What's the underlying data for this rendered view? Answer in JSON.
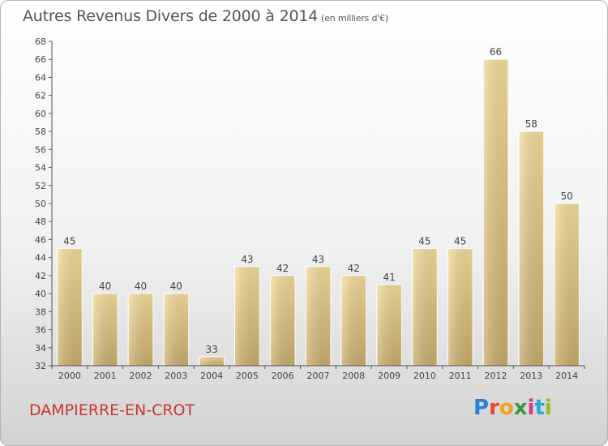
{
  "title": "Autres Revenus Divers de 2000 à 2014",
  "subtitle": "(en milliers d'€)",
  "commune": "DAMPIERRE-EN-CROT",
  "logo": {
    "text": "Proxiti",
    "colors": [
      "#2a7fd6",
      "#e8462b",
      "#f4a21d",
      "#3a9a3a",
      "#d63a86",
      "#2aa7d6",
      "#8bbf2a"
    ]
  },
  "chart_data": {
    "type": "bar",
    "categories": [
      "2000",
      "2001",
      "2002",
      "2003",
      "2004",
      "2005",
      "2006",
      "2007",
      "2008",
      "2009",
      "2010",
      "2011",
      "2012",
      "2013",
      "2014"
    ],
    "values": [
      45,
      40,
      40,
      40,
      33,
      43,
      42,
      43,
      42,
      41,
      45,
      45,
      66,
      58,
      50
    ],
    "data_labels": [
      "45",
      "40",
      "40",
      "40",
      "33",
      "43",
      "42",
      "43",
      "42",
      "41",
      "45",
      "45",
      "66",
      "58",
      "50"
    ],
    "ylim": [
      32,
      68
    ],
    "yticks": [
      32,
      34,
      36,
      38,
      40,
      42,
      44,
      46,
      48,
      50,
      52,
      54,
      56,
      58,
      60,
      62,
      64,
      66,
      68
    ],
    "grid": false,
    "bar_color_top": "#f3dc9a",
    "bar_color_bottom": "#c9ac6c"
  }
}
